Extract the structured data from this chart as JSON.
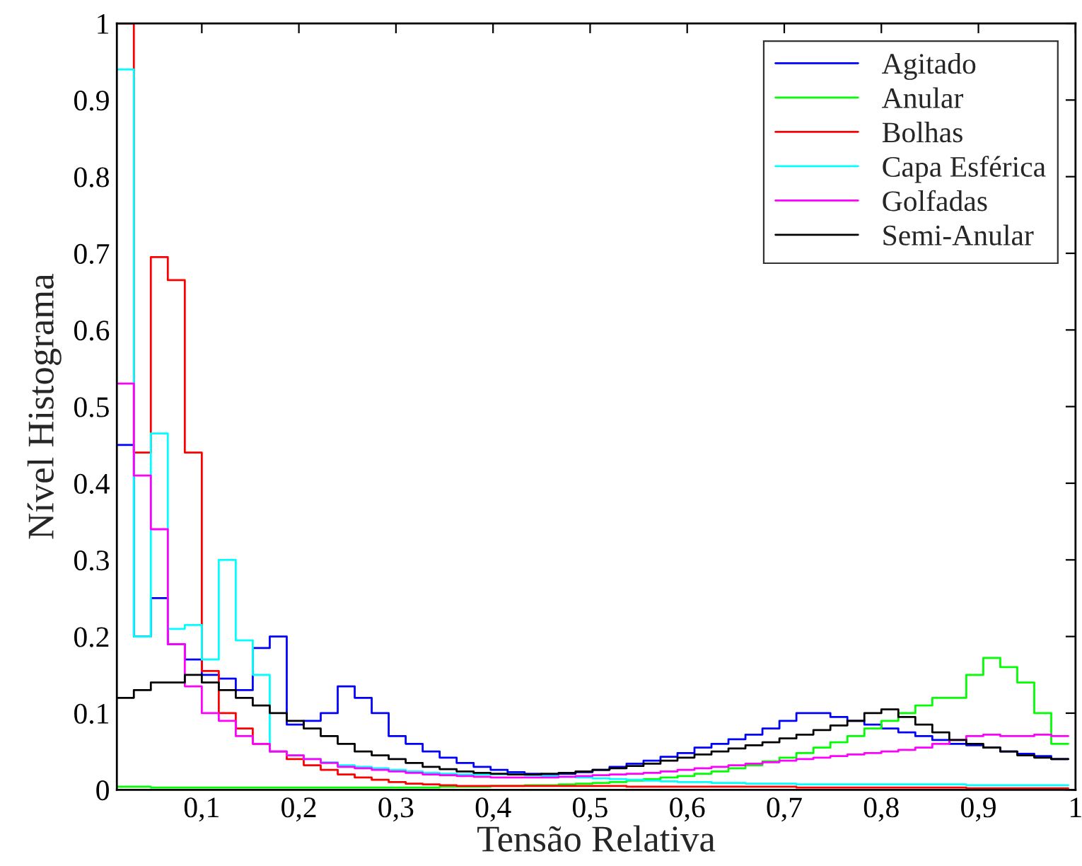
{
  "chart_data": {
    "type": "histogram",
    "xlabel": "Tensão Relativa",
    "ylabel": "Nível Histograma",
    "bins": [
      0.0125,
      0.03,
      0.0475,
      0.065,
      0.0825,
      0.1,
      0.1175,
      0.135,
      0.1525,
      0.17,
      0.1875,
      0.205,
      0.2225,
      0.24,
      0.2575,
      0.275,
      0.2925,
      0.31,
      0.3275,
      0.345,
      0.3625,
      0.38,
      0.3975,
      0.415,
      0.4325,
      0.45,
      0.4675,
      0.485,
      0.5025,
      0.52,
      0.5375,
      0.555,
      0.5725,
      0.59,
      0.6075,
      0.625,
      0.6425,
      0.66,
      0.6775,
      0.695,
      0.7125,
      0.73,
      0.7475,
      0.765,
      0.7825,
      0.8,
      0.8175,
      0.835,
      0.8525,
      0.87,
      0.8875,
      0.905,
      0.9225,
      0.94,
      0.9575,
      0.975,
      0.9925
    ],
    "series": [
      {
        "name": "Agitado",
        "color": "#0000ff",
        "values": [
          0.45,
          0.2,
          0.25,
          0.19,
          0.17,
          0.15,
          0.145,
          0.13,
          0.185,
          0.2,
          0.085,
          0.09,
          0.1,
          0.135,
          0.12,
          0.1,
          0.07,
          0.06,
          0.05,
          0.042,
          0.035,
          0.03,
          0.026,
          0.023,
          0.021,
          0.02,
          0.021,
          0.023,
          0.026,
          0.03,
          0.034,
          0.038,
          0.043,
          0.048,
          0.055,
          0.06,
          0.066,
          0.072,
          0.08,
          0.09,
          0.1,
          0.1,
          0.095,
          0.09,
          0.085,
          0.08,
          0.075,
          0.07,
          0.065,
          0.06,
          0.058,
          0.055,
          0.05,
          0.047,
          0.044,
          0.04
        ]
      },
      {
        "name": "Anular",
        "color": "#00ff00",
        "values": [
          0.004,
          0.004,
          0.003,
          0.003,
          0.003,
          0.003,
          0.003,
          0.003,
          0.003,
          0.003,
          0.003,
          0.003,
          0.003,
          0.003,
          0.003,
          0.003,
          0.003,
          0.003,
          0.003,
          0.004,
          0.004,
          0.004,
          0.005,
          0.005,
          0.006,
          0.006,
          0.007,
          0.008,
          0.009,
          0.01,
          0.012,
          0.014,
          0.016,
          0.018,
          0.021,
          0.024,
          0.028,
          0.032,
          0.037,
          0.042,
          0.048,
          0.055,
          0.062,
          0.07,
          0.08,
          0.09,
          0.1,
          0.11,
          0.12,
          0.12,
          0.15,
          0.172,
          0.16,
          0.14,
          0.1,
          0.06
        ]
      },
      {
        "name": "Bolhas",
        "color": "#ff0000",
        "values": [
          1.0,
          0.44,
          0.695,
          0.665,
          0.44,
          0.155,
          0.1,
          0.08,
          0.06,
          0.05,
          0.04,
          0.032,
          0.026,
          0.02,
          0.016,
          0.013,
          0.01,
          0.008,
          0.007,
          0.006,
          0.005,
          0.005,
          0.005,
          0.005,
          0.005,
          0.005,
          0.005,
          0.005,
          0.005,
          0.005,
          0.004,
          0.004,
          0.004,
          0.004,
          0.004,
          0.004,
          0.004,
          0.004,
          0.004,
          0.004,
          0.003,
          0.003,
          0.003,
          0.003,
          0.003,
          0.003,
          0.003,
          0.003,
          0.003,
          0.003,
          0.002,
          0.002,
          0.002,
          0.002,
          0.002,
          0.002
        ]
      },
      {
        "name": "Capa Esférica",
        "color": "#00ffff",
        "values": [
          0.94,
          0.2,
          0.465,
          0.21,
          0.215,
          0.17,
          0.3,
          0.195,
          0.15,
          0.05,
          0.045,
          0.04,
          0.036,
          0.032,
          0.03,
          0.028,
          0.026,
          0.024,
          0.022,
          0.021,
          0.02,
          0.02,
          0.02,
          0.02,
          0.019,
          0.018,
          0.017,
          0.016,
          0.015,
          0.014,
          0.013,
          0.012,
          0.011,
          0.01,
          0.01,
          0.009,
          0.009,
          0.008,
          0.008,
          0.008,
          0.007,
          0.007,
          0.007,
          0.007,
          0.007,
          0.007,
          0.007,
          0.007,
          0.007,
          0.007,
          0.006,
          0.006,
          0.006,
          0.006,
          0.006,
          0.006
        ]
      },
      {
        "name": "Golfadas",
        "color": "#ff00ff",
        "values": [
          0.53,
          0.41,
          0.34,
          0.19,
          0.135,
          0.1,
          0.09,
          0.07,
          0.06,
          0.05,
          0.045,
          0.04,
          0.035,
          0.03,
          0.028,
          0.026,
          0.024,
          0.022,
          0.02,
          0.019,
          0.018,
          0.017,
          0.016,
          0.016,
          0.016,
          0.016,
          0.017,
          0.018,
          0.019,
          0.02,
          0.021,
          0.022,
          0.024,
          0.026,
          0.028,
          0.03,
          0.032,
          0.034,
          0.036,
          0.038,
          0.04,
          0.042,
          0.044,
          0.046,
          0.048,
          0.05,
          0.052,
          0.055,
          0.06,
          0.065,
          0.07,
          0.072,
          0.07,
          0.07,
          0.072,
          0.07
        ]
      },
      {
        "name": "Semi-Anular",
        "color": "#000000",
        "values": [
          0.12,
          0.13,
          0.14,
          0.14,
          0.15,
          0.14,
          0.13,
          0.12,
          0.11,
          0.1,
          0.09,
          0.08,
          0.07,
          0.06,
          0.05,
          0.045,
          0.04,
          0.035,
          0.03,
          0.027,
          0.024,
          0.022,
          0.021,
          0.02,
          0.02,
          0.021,
          0.022,
          0.024,
          0.026,
          0.028,
          0.031,
          0.034,
          0.038,
          0.042,
          0.046,
          0.05,
          0.054,
          0.058,
          0.062,
          0.067,
          0.072,
          0.078,
          0.084,
          0.09,
          0.1,
          0.105,
          0.095,
          0.085,
          0.075,
          0.065,
          0.06,
          0.055,
          0.05,
          0.045,
          0.042,
          0.04
        ]
      }
    ],
    "xlim": [
      0.0125,
      1
    ],
    "ylim": [
      0,
      1
    ],
    "xticks": [
      {
        "value": 0.1,
        "label": "0,1"
      },
      {
        "value": 0.2,
        "label": "0,2"
      },
      {
        "value": 0.3,
        "label": "0,3"
      },
      {
        "value": 0.4,
        "label": "0,4"
      },
      {
        "value": 0.5,
        "label": "0,5"
      },
      {
        "value": 0.6,
        "label": "0,6"
      },
      {
        "value": 0.7,
        "label": "0,7"
      },
      {
        "value": 0.8,
        "label": "0,8"
      },
      {
        "value": 0.9,
        "label": "0,9"
      },
      1
    ],
    "yticks": [
      0,
      0.1,
      0.2,
      0.3,
      0.4,
      0.5,
      0.6,
      0.7,
      0.8,
      0.9,
      1
    ],
    "grid": false,
    "legend": "top right"
  }
}
